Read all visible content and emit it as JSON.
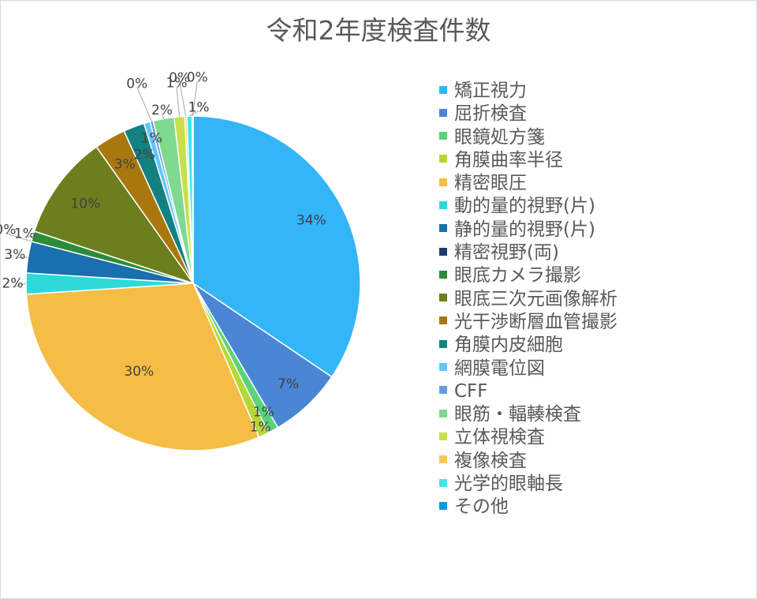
{
  "chart_data": {
    "type": "pie",
    "title": "令和2年度検査件数",
    "legend_position": "right",
    "categories": [
      "矯正視力",
      "屈折検査",
      "眼鏡処方箋",
      "角膜曲率半径",
      "精密眼圧",
      "動的量的視野(片)",
      "静的量的視野(片)",
      "精密視野(両)",
      "眼底カメラ撮影",
      "眼底三次元画像解析",
      "光干渉断層血管撮影",
      "角膜内皮細胞",
      "網膜電位図",
      "CFF",
      "眼筋・輻輳検査",
      "立体視検査",
      "複像検査",
      "光学的眼軸長",
      "その他"
    ],
    "values": [
      34,
      7,
      1,
      1,
      30,
      2,
      3,
      0,
      1,
      10,
      3,
      2,
      0.6,
      0.3,
      2,
      1,
      0.2,
      0.5,
      0.1
    ],
    "data_labels": [
      "34%",
      "7%",
      "1%",
      "1%",
      "30%",
      "2%",
      "3%",
      "0%",
      "1%",
      "10%",
      "3%",
      "2%",
      "1%",
      "0%",
      "2%",
      "1%",
      "0%",
      "1%",
      "0%"
    ],
    "colors": [
      "#33b5f7",
      "#4a86d4",
      "#5ad37a",
      "#b4d834",
      "#f4bd45",
      "#2ed9d9",
      "#1a6fae",
      "#1f3a6e",
      "#2e8b3a",
      "#6b7f1e",
      "#a8780e",
      "#148080",
      "#5ec8ff",
      "#6a9bdc",
      "#7fd98e",
      "#c7e04a",
      "#f6c85a",
      "#3fe6e6",
      "#1196e0"
    ]
  }
}
